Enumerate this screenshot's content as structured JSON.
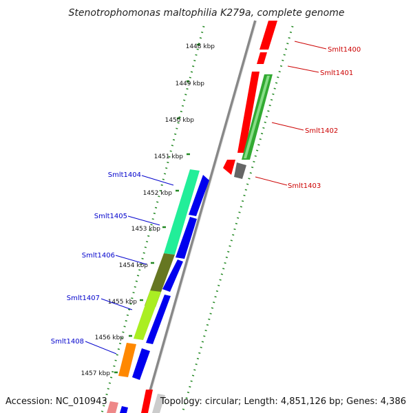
{
  "title": "Stenotrophomonas maltophilia K279a, complete genome",
  "footer": {
    "accession": "Accession: NC_010943",
    "topology": "Topology: circular; Length: 4,851,126 bp; Genes: 4,386"
  },
  "ticks": [
    "1448 kbp",
    "1449 kbp",
    "1450 kbp",
    "1451 kbp",
    "1452 kbp",
    "1453 kbp",
    "1454 kbp",
    "1455 kbp",
    "1456 kbp",
    "1457 kbp"
  ],
  "colors": {
    "forward_label": "#cc0000",
    "reverse_label": "#0000cc",
    "backbone": "#888888",
    "scale_dots": "#228822"
  },
  "genes": [
    {
      "label": "Smlt1400",
      "strand": "forward",
      "color": "#ff0000"
    },
    {
      "label": "Smlt1401",
      "strand": "forward",
      "color": "#ff0000"
    },
    {
      "label": "Smlt1402",
      "strand": "forward",
      "color": "#33aa33"
    },
    {
      "label": "Smlt1403",
      "strand": "forward",
      "color": "#666666"
    },
    {
      "label": "Smlt1404",
      "strand": "reverse",
      "color": "#22ee99"
    },
    {
      "label": "Smlt1405",
      "strand": "reverse",
      "color": "#22ee99"
    },
    {
      "label": "Smlt1406",
      "strand": "reverse",
      "color": "#667722"
    },
    {
      "label": "Smlt1407",
      "strand": "reverse",
      "color": "#aaee22"
    },
    {
      "label": "Smlt1408",
      "strand": "reverse",
      "color": "#ff8800"
    }
  ]
}
